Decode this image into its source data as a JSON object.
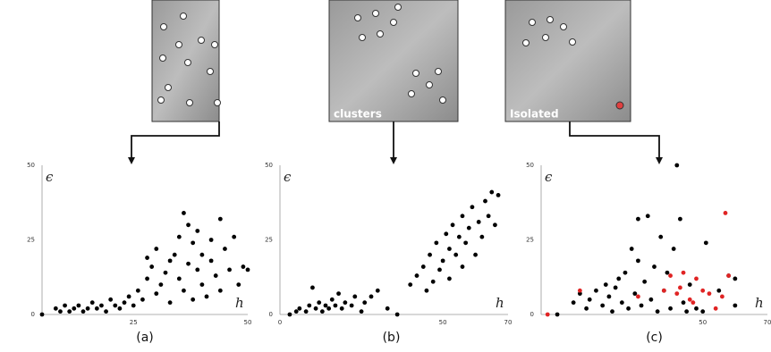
{
  "chart_data": [
    {
      "type": "scatter",
      "caption": "(a)",
      "y_label": "ϵ",
      "x_label": "h",
      "xlim": [
        5,
        50
      ],
      "ylim": [
        0,
        50
      ],
      "xticks": [
        25,
        50
      ],
      "yticks": [
        0,
        25,
        50
      ],
      "series": [
        {
          "color": "#000000",
          "x": [
            5,
            8,
            9,
            10,
            11,
            12,
            13,
            14,
            15,
            16,
            17,
            18,
            19,
            20,
            21,
            22,
            23,
            24,
            25,
            26,
            27,
            28,
            28,
            29,
            30,
            30,
            31,
            32,
            33,
            33,
            34,
            35,
            35,
            36,
            36,
            37,
            37,
            38,
            38,
            39,
            39,
            40,
            40,
            41,
            42,
            42,
            43,
            44,
            44,
            45,
            46,
            47,
            48,
            49,
            50
          ],
          "values": [
            0,
            2,
            1,
            3,
            1,
            2,
            3,
            1,
            2,
            4,
            2,
            3,
            1,
            5,
            3,
            2,
            4,
            6,
            3,
            8,
            5,
            12,
            19,
            16,
            7,
            22,
            10,
            14,
            18,
            4,
            20,
            26,
            12,
            34,
            8,
            30,
            17,
            24,
            5,
            15,
            28,
            10,
            20,
            6,
            18,
            25,
            13,
            32,
            8,
            22,
            15,
            26,
            10,
            16,
            15
          ]
        }
      ]
    },
    {
      "type": "scatter",
      "caption": "(b)",
      "y_label": "ϵ",
      "x_label": "h",
      "image_label": "clusters",
      "xlim": [
        0,
        70
      ],
      "ylim": [
        0,
        50
      ],
      "xticks": [
        0,
        50,
        70
      ],
      "yticks": [
        0,
        25,
        50
      ],
      "series": [
        {
          "color": "#000000",
          "x": [
            3,
            5,
            6,
            8,
            9,
            10,
            11,
            12,
            13,
            14,
            15,
            16,
            17,
            18,
            19,
            20,
            22,
            23,
            25,
            26,
            28,
            30,
            33,
            36,
            40,
            42,
            44,
            45,
            46,
            47,
            48,
            49,
            50,
            51,
            52,
            52,
            53,
            54,
            55,
            56,
            56,
            57,
            58,
            59,
            60,
            61,
            62,
            63,
            64,
            65,
            66,
            67
          ],
          "values": [
            0,
            1,
            2,
            1,
            3,
            9,
            2,
            4,
            1,
            3,
            2,
            5,
            3,
            7,
            2,
            4,
            3,
            6,
            1,
            4,
            6,
            8,
            2,
            0,
            10,
            13,
            16,
            8,
            20,
            11,
            24,
            15,
            18,
            27,
            12,
            22,
            30,
            20,
            26,
            16,
            33,
            24,
            29,
            36,
            20,
            31,
            26,
            38,
            33,
            41,
            30,
            40
          ]
        }
      ]
    },
    {
      "type": "scatter",
      "caption": "(c)",
      "y_label": "ϵ",
      "x_label": "h",
      "image_label": "Isolated",
      "xlim": [
        0,
        70
      ],
      "ylim": [
        0,
        50
      ],
      "xticks": [
        50,
        70
      ],
      "yticks": [
        0,
        25,
        50
      ],
      "series": [
        {
          "color": "#000000",
          "x": [
            5,
            10,
            12,
            14,
            15,
            17,
            19,
            20,
            21,
            22,
            23,
            24,
            25,
            26,
            27,
            28,
            29,
            30,
            30,
            31,
            32,
            33,
            34,
            35,
            36,
            37,
            38,
            39,
            40,
            41,
            42,
            43,
            44,
            45,
            46,
            48,
            50,
            51,
            55,
            58,
            60,
            60
          ],
          "values": [
            0,
            4,
            7,
            2,
            5,
            8,
            3,
            10,
            6,
            1,
            9,
            12,
            4,
            14,
            2,
            22,
            7,
            32,
            18,
            3,
            11,
            33,
            5,
            16,
            1,
            26,
            8,
            14,
            2,
            22,
            50,
            32,
            4,
            1,
            10,
            2,
            1,
            24,
            8,
            13,
            12,
            3
          ]
        },
        {
          "color": "#e02424",
          "x": [
            2,
            12,
            30,
            38,
            40,
            42,
            44,
            46,
            48,
            50,
            52,
            54,
            56,
            57,
            58,
            47,
            43
          ],
          "values": [
            0,
            8,
            6,
            8,
            13,
            7,
            14,
            5,
            12,
            8,
            7,
            2,
            6,
            34,
            13,
            4,
            9
          ]
        }
      ]
    }
  ]
}
